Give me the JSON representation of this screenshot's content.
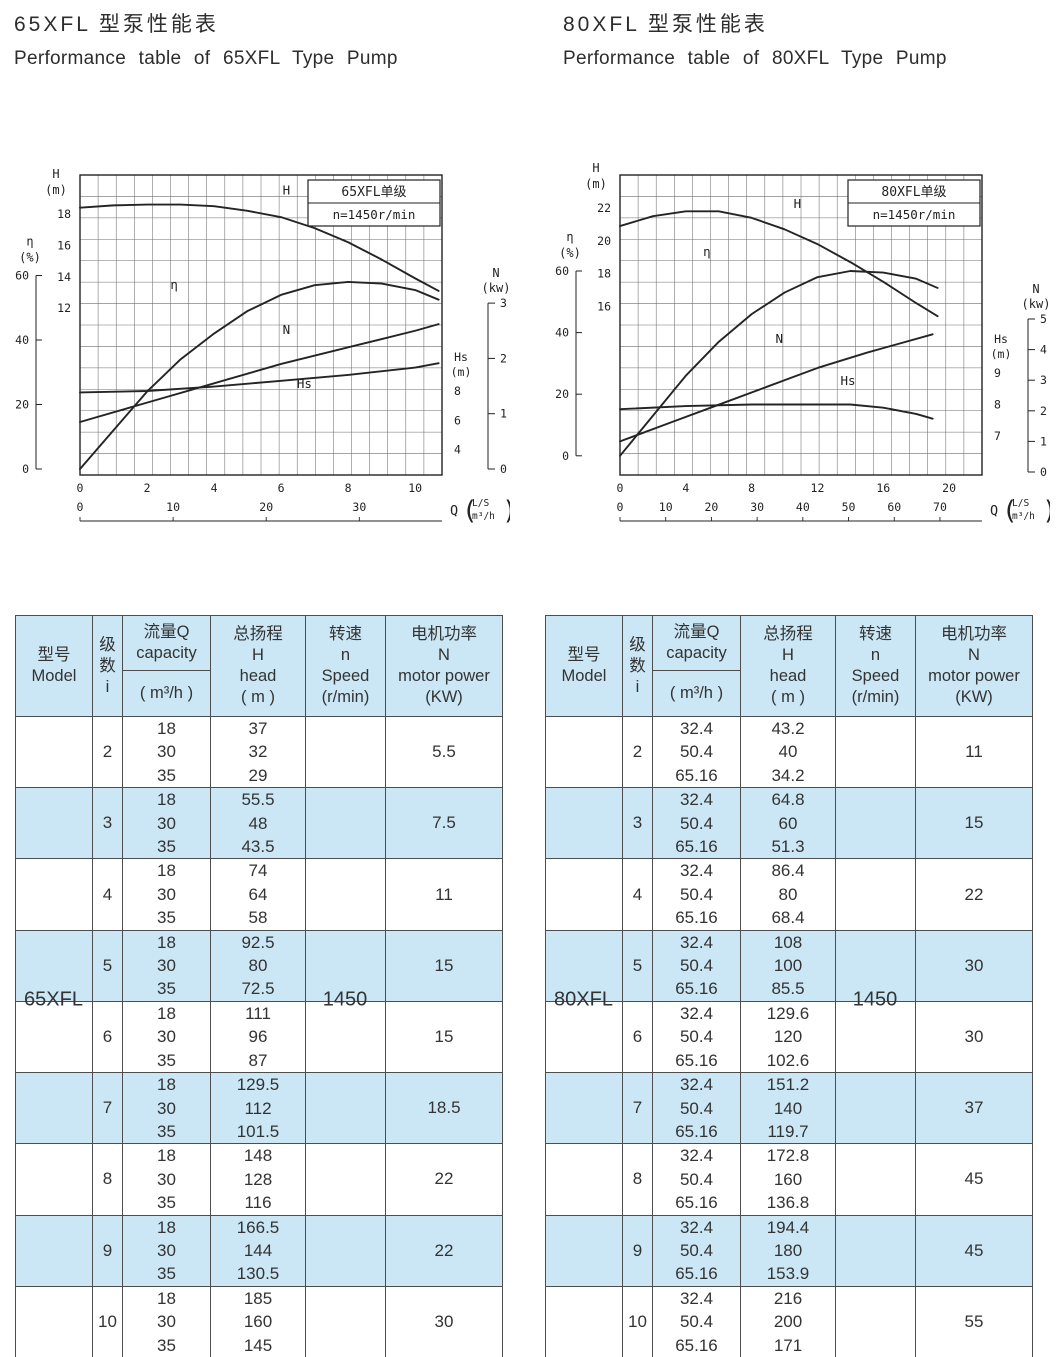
{
  "colors": {
    "band": "#cbe7f5",
    "header": "#cbe7f5",
    "border": "#4d4d4d",
    "ink": "#333333",
    "chart_ink": "#222222"
  },
  "sections": {
    "left": {
      "title_zh": "65XFL 型泵性能表",
      "title_en": "Performance table of 65XFL Type Pump"
    },
    "right": {
      "title_zh": "80XFL 型泵性能表",
      "title_en": "Performance table of 80XFL Type Pump"
    }
  },
  "table_headers": {
    "model": "型号\nModel",
    "stages": "级\n数\ni",
    "capacity": "流量Q\ncapacity",
    "capacity_unit": "( m³/h )",
    "head": "总扬程\nH\nhead\n( m )",
    "speed": "转速\nn\nSpeed\n(r/min)",
    "power": "电机功率\nN\nmotor power\n(KW)"
  },
  "tables": [
    {
      "model": "65XFL",
      "speed": "1450",
      "rows": [
        {
          "i": "2",
          "q": [
            "18",
            "30",
            "35"
          ],
          "h": [
            "37",
            "32",
            "29"
          ],
          "n": "5.5"
        },
        {
          "i": "3",
          "q": [
            "18",
            "30",
            "35"
          ],
          "h": [
            "55.5",
            "48",
            "43.5"
          ],
          "n": "7.5"
        },
        {
          "i": "4",
          "q": [
            "18",
            "30",
            "35"
          ],
          "h": [
            "74",
            "64",
            "58"
          ],
          "n": "11"
        },
        {
          "i": "5",
          "q": [
            "18",
            "30",
            "35"
          ],
          "h": [
            "92.5",
            "80",
            "72.5"
          ],
          "n": "15"
        },
        {
          "i": "6",
          "q": [
            "18",
            "30",
            "35"
          ],
          "h": [
            "111",
            "96",
            "87"
          ],
          "n": "15"
        },
        {
          "i": "7",
          "q": [
            "18",
            "30",
            "35"
          ],
          "h": [
            "129.5",
            "112",
            "101.5"
          ],
          "n": "18.5"
        },
        {
          "i": "8",
          "q": [
            "18",
            "30",
            "35"
          ],
          "h": [
            "148",
            "128",
            "116"
          ],
          "n": "22"
        },
        {
          "i": "9",
          "q": [
            "18",
            "30",
            "35"
          ],
          "h": [
            "166.5",
            "144",
            "130.5"
          ],
          "n": "22"
        },
        {
          "i": "10",
          "q": [
            "18",
            "30",
            "35"
          ],
          "h": [
            "185",
            "160",
            "145"
          ],
          "n": "30"
        }
      ]
    },
    {
      "model": "80XFL",
      "speed": "1450",
      "rows": [
        {
          "i": "2",
          "q": [
            "32.4",
            "50.4",
            "65.16"
          ],
          "h": [
            "43.2",
            "40",
            "34.2"
          ],
          "n": "11"
        },
        {
          "i": "3",
          "q": [
            "32.4",
            "50.4",
            "65.16"
          ],
          "h": [
            "64.8",
            "60",
            "51.3"
          ],
          "n": "15"
        },
        {
          "i": "4",
          "q": [
            "32.4",
            "50.4",
            "65.16"
          ],
          "h": [
            "86.4",
            "80",
            "68.4"
          ],
          "n": "22"
        },
        {
          "i": "5",
          "q": [
            "32.4",
            "50.4",
            "65.16"
          ],
          "h": [
            "108",
            "100",
            "85.5"
          ],
          "n": "30"
        },
        {
          "i": "6",
          "q": [
            "32.4",
            "50.4",
            "65.16"
          ],
          "h": [
            "129.6",
            "120",
            "102.6"
          ],
          "n": "30"
        },
        {
          "i": "7",
          "q": [
            "32.4",
            "50.4",
            "65.16"
          ],
          "h": [
            "151.2",
            "140",
            "119.7"
          ],
          "n": "37"
        },
        {
          "i": "8",
          "q": [
            "32.4",
            "50.4",
            "65.16"
          ],
          "h": [
            "172.8",
            "160",
            "136.8"
          ],
          "n": "45"
        },
        {
          "i": "9",
          "q": [
            "32.4",
            "50.4",
            "65.16"
          ],
          "h": [
            "194.4",
            "180",
            "153.9"
          ],
          "n": "45"
        },
        {
          "i": "10",
          "q": [
            "32.4",
            "50.4",
            "65.16"
          ],
          "h": [
            "216",
            "200",
            "171"
          ],
          "n": "55"
        }
      ]
    }
  ],
  "chart_data": [
    {
      "type": "line",
      "title": "65XFL单级",
      "subtitle": "n=1450r/min",
      "grid": true,
      "legend_position": "top-right",
      "x_axis": {
        "label": "Q",
        "units": [
          "L/S",
          "m³/h"
        ],
        "ticks_ls": [
          0,
          2,
          4,
          6,
          8,
          10
        ],
        "ticks_m3h": [
          0,
          10,
          20,
          30
        ],
        "min": 0,
        "max": 10.8,
        "m3h_per_ls": 3.6
      },
      "y_axes": {
        "H": {
          "title": "H\n(m)",
          "ticks": [
            18,
            16,
            14,
            12
          ],
          "v0": 12,
          "f0": 0.556,
          "v1": 18,
          "f1": 0.87,
          "side": "left-outer"
        },
        "eta": {
          "title": "η\n(%)",
          "ticks": [
            60,
            40,
            20,
            0
          ],
          "v0": 0,
          "f0": 0.02,
          "v1": 60,
          "f1": 0.665,
          "side": "left-bracket"
        },
        "Hs": {
          "title": "Hs\n(m)",
          "ticks": [
            8,
            6,
            4
          ],
          "v0": 4,
          "f0": 0.085,
          "v1": 8,
          "f1": 0.28,
          "side": "right-inner"
        },
        "N": {
          "title": "N\n(kw)",
          "ticks": [
            3,
            2,
            1,
            0
          ],
          "v0": 0,
          "f0": 0.02,
          "v1": 3,
          "f1": 0.573,
          "side": "right-bracket"
        }
      },
      "series": [
        {
          "name": "H",
          "axis": "H",
          "x": [
            0,
            1,
            2,
            3,
            4,
            5,
            6,
            7,
            8,
            9,
            10,
            10.7
          ],
          "y": [
            18.4,
            18.55,
            18.6,
            18.6,
            18.5,
            18.2,
            17.8,
            17.1,
            16.2,
            15.1,
            13.9,
            13.1
          ],
          "label_fx": 0.57,
          "label_fy": 0.935
        },
        {
          "name": "η",
          "axis": "eta",
          "x": [
            0,
            1,
            2,
            3,
            4,
            5,
            6,
            7,
            8,
            9,
            10,
            10.7
          ],
          "y": [
            0,
            12,
            24,
            34,
            42,
            49,
            54,
            57,
            58,
            57.5,
            55.5,
            52.5
          ],
          "label_fx": 0.26,
          "label_fy": 0.62
        },
        {
          "name": "N",
          "axis": "N",
          "x": [
            0,
            2,
            4,
            6,
            8,
            10,
            10.7
          ],
          "y": [
            0.85,
            1.2,
            1.55,
            1.9,
            2.2,
            2.5,
            2.62
          ],
          "label_fx": 0.57,
          "label_fy": 0.47
        },
        {
          "name": "Hs",
          "axis": "Hs",
          "x": [
            0,
            2,
            4,
            6,
            8,
            10,
            10.7
          ],
          "y": [
            7.9,
            8.0,
            8.3,
            8.7,
            9.1,
            9.6,
            9.9
          ],
          "label_fx": 0.62,
          "label_fy": 0.29
        }
      ]
    },
    {
      "type": "line",
      "title": "80XFL单级",
      "subtitle": "n=1450r/min",
      "grid": true,
      "legend_position": "top-right",
      "x_axis": {
        "label": "Q",
        "units": [
          "L/S",
          "m³/h"
        ],
        "ticks_ls": [
          0,
          4,
          8,
          12,
          16,
          20
        ],
        "ticks_m3h": [
          0,
          10,
          20,
          30,
          40,
          50,
          60,
          70
        ],
        "min": 0,
        "max": 22,
        "m3h_per_ls": 3.6
      },
      "y_axes": {
        "H": {
          "title": "H\n(m)",
          "ticks": [
            22,
            20,
            18,
            16
          ],
          "v0": 16,
          "f0": 0.562,
          "v1": 22,
          "f1": 0.89,
          "side": "left-outer"
        },
        "eta": {
          "title": "η\n(%)",
          "ticks": [
            60,
            40,
            20,
            0
          ],
          "v0": 0,
          "f0": 0.064,
          "v1": 60,
          "f1": 0.68,
          "side": "left-bracket"
        },
        "Hs": {
          "title": "Hs\n(m)",
          "ticks": [
            9,
            8,
            7
          ],
          "v0": 7,
          "f0": 0.13,
          "v1": 9,
          "f1": 0.34,
          "side": "right-inner"
        },
        "N": {
          "title": "N\n(kw)",
          "ticks": [
            5,
            4,
            3,
            2,
            1,
            0
          ],
          "v0": 0,
          "f0": 0.01,
          "v1": 5,
          "f1": 0.52,
          "side": "right-bracket"
        }
      },
      "series": [
        {
          "name": "H",
          "axis": "H",
          "x": [
            0,
            2,
            4,
            6,
            8,
            10,
            12,
            14,
            16,
            18,
            19.3
          ],
          "y": [
            20.9,
            21.5,
            21.8,
            21.8,
            21.4,
            20.7,
            19.8,
            18.7,
            17.5,
            16.2,
            15.4
          ],
          "label_fx": 0.49,
          "label_fy": 0.89
        },
        {
          "name": "η",
          "axis": "eta",
          "x": [
            0,
            2,
            4,
            6,
            8,
            10,
            12,
            14,
            16,
            18,
            19.3
          ],
          "y": [
            0,
            13,
            26,
            37,
            46,
            53,
            58,
            60,
            59.5,
            57.5,
            54.5
          ],
          "label_fx": 0.24,
          "label_fy": 0.73
        },
        {
          "name": "N",
          "axis": "N",
          "x": [
            0,
            3,
            6,
            9,
            12,
            15,
            17,
            19
          ],
          "y": [
            1.0,
            1.6,
            2.2,
            2.8,
            3.4,
            3.9,
            4.2,
            4.5
          ],
          "label_fx": 0.44,
          "label_fy": 0.44
        },
        {
          "name": "Hs",
          "axis": "Hs",
          "x": [
            0,
            4,
            8,
            12,
            14,
            16,
            18,
            19
          ],
          "y": [
            7.85,
            7.95,
            8.0,
            8.0,
            8.0,
            7.9,
            7.7,
            7.55
          ],
          "label_fx": 0.63,
          "label_fy": 0.3
        }
      ]
    }
  ]
}
